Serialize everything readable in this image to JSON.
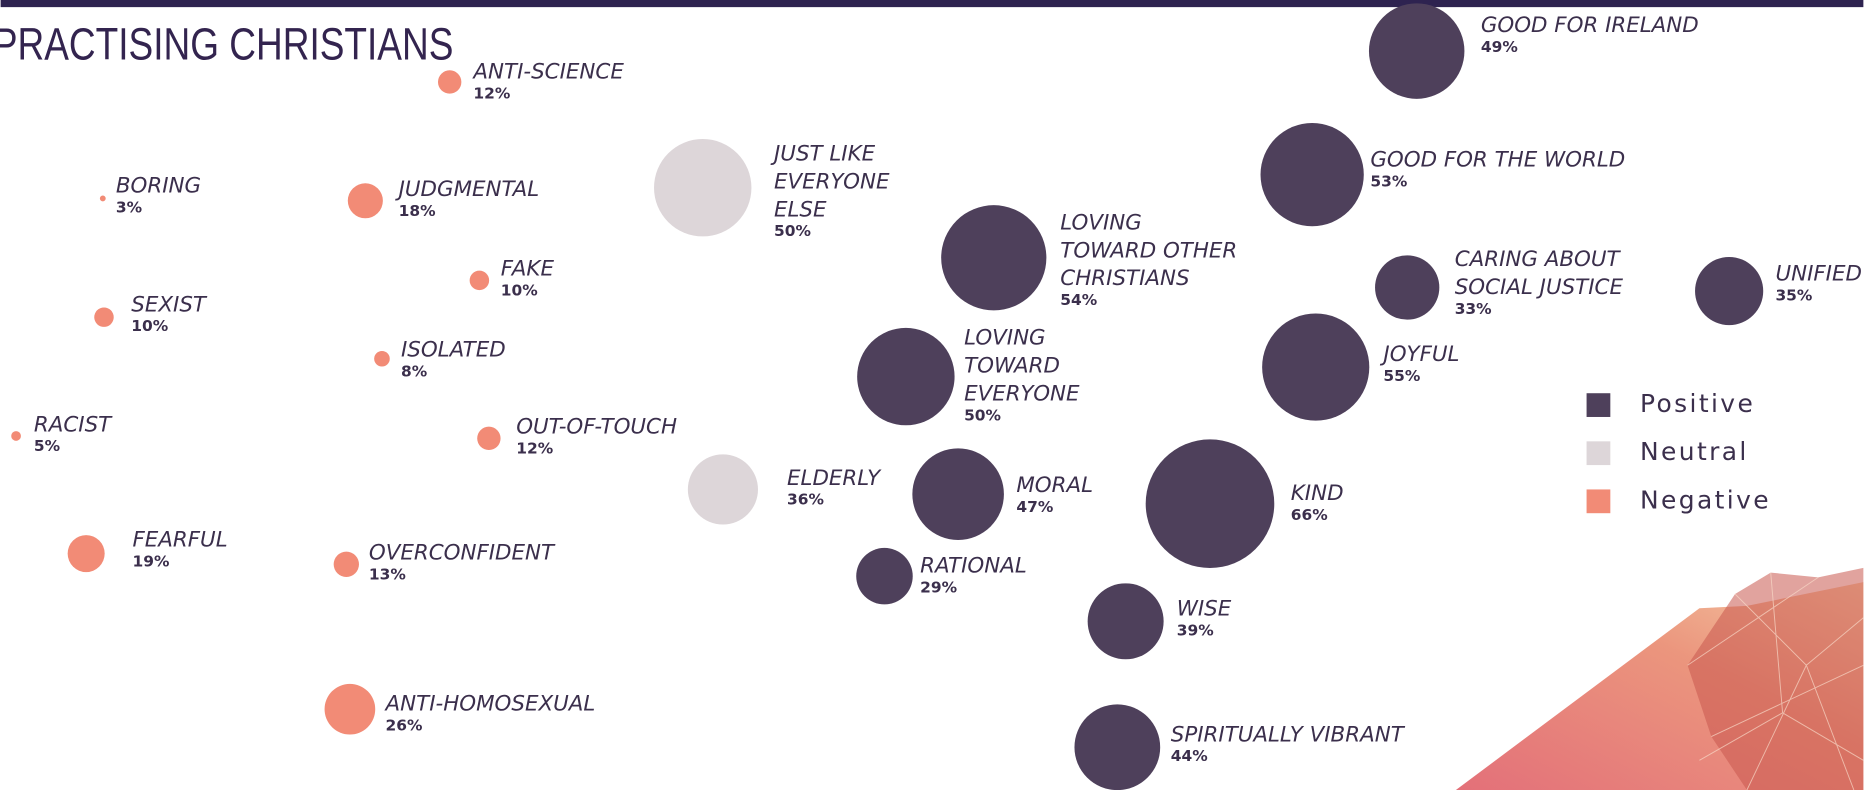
{
  "chart_data": {
    "type": "bubble",
    "title": "PRACTISING CHRISTIANS",
    "series": [
      {
        "name": "Positive",
        "color": "#4e405b",
        "categories": [
          "GOOD FOR IRELAND",
          "GOOD FOR THE WORLD",
          "LOVING TOWARD OTHER CHRISTIANS",
          "CARING ABOUT SOCIAL JUSTICE",
          "UNIFIED",
          "JOYFUL",
          "LOVING TOWARD EVERYONE",
          "MORAL",
          "KIND",
          "RATIONAL",
          "WISE",
          "SPIRITUALLY VIBRANT"
        ],
        "values": [
          49,
          53,
          54,
          33,
          35,
          55,
          50,
          47,
          66,
          29,
          39,
          44
        ],
        "value_labels": [
          "49%",
          "53%",
          "54%",
          "33%",
          "35%",
          "55%",
          "50%",
          "47%",
          "66%",
          "29%",
          "39%",
          "44%"
        ]
      },
      {
        "name": "Neutral",
        "color": "#ddd6d9",
        "categories": [
          "JUST LIKE EVERYONE ELSE",
          "ELDERLY"
        ],
        "values": [
          50,
          36
        ],
        "value_labels": [
          "50%",
          "36%"
        ]
      },
      {
        "name": "Negative",
        "color": "#f28b76",
        "categories": [
          "ANTI-SCIENCE",
          "BORING",
          "JUDGMENTAL",
          "FAKE",
          "SEXIST",
          "ISOLATED",
          "RACIST",
          "OUT-OF-TOUCH",
          "FEARFUL",
          "OVERCONFIDENT",
          "ANTI-HOMOSEXUAL"
        ],
        "values": [
          12,
          3,
          18,
          10,
          10,
          8,
          5,
          12,
          19,
          13,
          26
        ],
        "value_labels": [
          "12%",
          "3%",
          "18%",
          "10%",
          "10%",
          "8%",
          "5%",
          "12%",
          "19%",
          "13%",
          "26%"
        ]
      }
    ]
  }
}
